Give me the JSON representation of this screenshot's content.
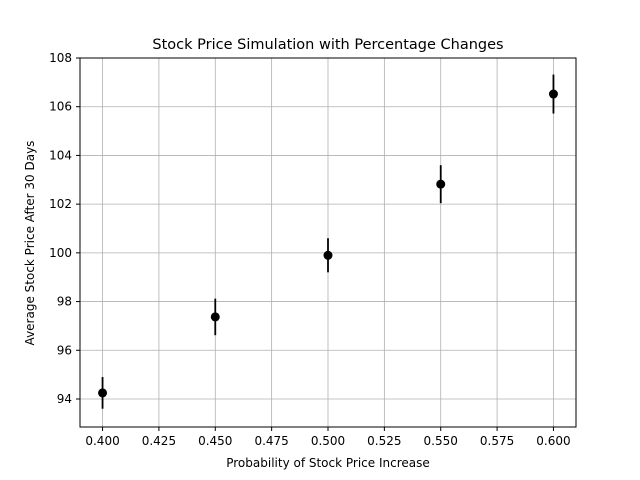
{
  "chart_data": {
    "type": "scatter",
    "title": "Stock Price Simulation with Percentage Changes",
    "xlabel": "Probability of Stock Price Increase",
    "ylabel": "Average Stock Price After 30 Days",
    "xlim": [
      0.39,
      0.61
    ],
    "ylim": [
      92.85,
      108.0
    ],
    "x_ticks": [
      0.4,
      0.425,
      0.45,
      0.475,
      0.5,
      0.525,
      0.55,
      0.575,
      0.6
    ],
    "x_tick_labels": [
      "0.400",
      "0.425",
      "0.450",
      "0.475",
      "0.500",
      "0.525",
      "0.550",
      "0.575",
      "0.600"
    ],
    "y_ticks": [
      94,
      96,
      98,
      100,
      102,
      104,
      106,
      108
    ],
    "y_tick_labels": [
      "94",
      "96",
      "98",
      "100",
      "102",
      "104",
      "106",
      "108"
    ],
    "grid": true,
    "legend": false,
    "series": [
      {
        "x": [
          0.4,
          0.45,
          0.5,
          0.55,
          0.6
        ],
        "y": [
          94.25,
          97.37,
          99.9,
          102.82,
          106.52
        ],
        "yerr": [
          0.65,
          0.75,
          0.7,
          0.78,
          0.8
        ],
        "color": "#000000",
        "marker": "circle"
      }
    ]
  }
}
